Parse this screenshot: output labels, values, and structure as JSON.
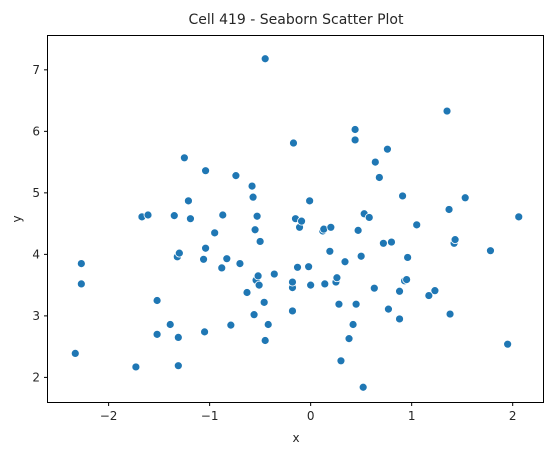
{
  "chart_data": {
    "type": "scatter",
    "title": "Cell 419 - Seaborn Scatter Plot",
    "xlabel": "x",
    "ylabel": "y",
    "xlim": [
      -2.6,
      2.3
    ],
    "ylim": [
      1.6,
      7.55
    ],
    "xticks": [
      -2,
      -1,
      0,
      1,
      2
    ],
    "yticks": [
      2,
      3,
      4,
      5,
      6,
      7
    ],
    "xtick_labels": [
      "−2",
      "−1",
      "0",
      "1",
      "2"
    ],
    "ytick_labels": [
      "2",
      "3",
      "4",
      "5",
      "6",
      "7"
    ],
    "grid": false,
    "legend": "none",
    "point_color": "#1f77b4",
    "points": [
      [
        -2.33,
        2.39
      ],
      [
        -2.27,
        3.85
      ],
      [
        -2.27,
        3.52
      ],
      [
        -1.73,
        2.17
      ],
      [
        -1.67,
        4.61
      ],
      [
        -1.61,
        4.64
      ],
      [
        -1.52,
        3.25
      ],
      [
        -1.52,
        2.7
      ],
      [
        -1.39,
        2.86
      ],
      [
        -1.35,
        4.63
      ],
      [
        -1.32,
        3.96
      ],
      [
        -1.31,
        2.65
      ],
      [
        -1.31,
        2.19
      ],
      [
        -1.3,
        4.02
      ],
      [
        -1.25,
        5.57
      ],
      [
        -1.21,
        4.87
      ],
      [
        -1.19,
        4.58
      ],
      [
        -1.06,
        3.92
      ],
      [
        -1.05,
        2.74
      ],
      [
        -1.04,
        5.36
      ],
      [
        -1.04,
        4.1
      ],
      [
        -0.95,
        4.35
      ],
      [
        -0.88,
        3.78
      ],
      [
        -0.87,
        4.64
      ],
      [
        -0.83,
        3.93
      ],
      [
        -0.79,
        2.85
      ],
      [
        -0.74,
        5.28
      ],
      [
        -0.7,
        3.85
      ],
      [
        -0.63,
        3.38
      ],
      [
        -0.58,
        5.11
      ],
      [
        -0.57,
        4.93
      ],
      [
        -0.56,
        3.02
      ],
      [
        -0.55,
        4.4
      ],
      [
        -0.54,
        3.58
      ],
      [
        -0.53,
        4.62
      ],
      [
        -0.52,
        3.65
      ],
      [
        -0.51,
        3.5
      ],
      [
        -0.5,
        4.21
      ],
      [
        -0.46,
        3.22
      ],
      [
        -0.45,
        2.6
      ],
      [
        -0.45,
        7.18
      ],
      [
        -0.42,
        2.86
      ],
      [
        -0.36,
        3.68
      ],
      [
        -0.18,
        3.08
      ],
      [
        -0.18,
        3.46
      ],
      [
        -0.18,
        3.55
      ],
      [
        -0.17,
        5.81
      ],
      [
        -0.15,
        4.58
      ],
      [
        -0.13,
        3.79
      ],
      [
        -0.11,
        4.44
      ],
      [
        -0.09,
        4.54
      ],
      [
        -0.02,
        3.8
      ],
      [
        -0.01,
        4.87
      ],
      [
        0.0,
        3.5
      ],
      [
        0.12,
        4.38
      ],
      [
        0.13,
        4.41
      ],
      [
        0.14,
        3.52
      ],
      [
        0.19,
        4.05
      ],
      [
        0.2,
        4.44
      ],
      [
        0.25,
        3.55
      ],
      [
        0.26,
        3.62
      ],
      [
        0.28,
        3.19
      ],
      [
        0.3,
        2.27
      ],
      [
        0.34,
        3.88
      ],
      [
        0.38,
        2.63
      ],
      [
        0.42,
        2.86
      ],
      [
        0.44,
        6.03
      ],
      [
        0.44,
        5.86
      ],
      [
        0.45,
        3.19
      ],
      [
        0.47,
        4.39
      ],
      [
        0.5,
        3.97
      ],
      [
        0.52,
        1.84
      ],
      [
        0.53,
        4.66
      ],
      [
        0.58,
        4.6
      ],
      [
        0.63,
        3.45
      ],
      [
        0.64,
        5.5
      ],
      [
        0.68,
        5.25
      ],
      [
        0.72,
        4.18
      ],
      [
        0.76,
        5.71
      ],
      [
        0.77,
        3.11
      ],
      [
        0.8,
        4.2
      ],
      [
        0.88,
        3.4
      ],
      [
        0.88,
        2.95
      ],
      [
        0.91,
        4.95
      ],
      [
        0.93,
        3.57
      ],
      [
        0.95,
        3.59
      ],
      [
        0.96,
        3.95
      ],
      [
        1.05,
        4.48
      ],
      [
        1.17,
        3.33
      ],
      [
        1.23,
        3.41
      ],
      [
        1.35,
        6.33
      ],
      [
        1.37,
        4.73
      ],
      [
        1.38,
        3.03
      ],
      [
        1.42,
        4.18
      ],
      [
        1.43,
        4.24
      ],
      [
        1.53,
        4.92
      ],
      [
        1.78,
        4.06
      ],
      [
        1.95,
        2.54
      ],
      [
        2.06,
        4.61
      ]
    ]
  }
}
